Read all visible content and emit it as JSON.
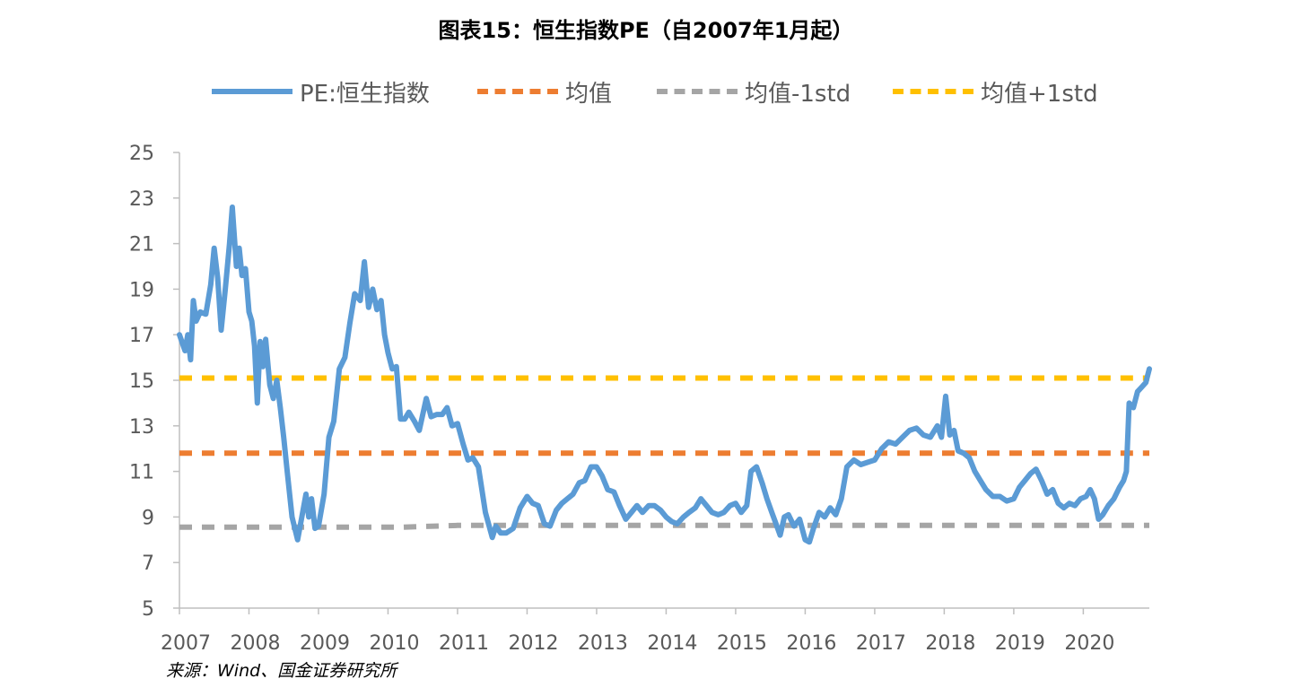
{
  "title": "图表15：恒生指数PE（自2007年1月起）",
  "source": "来源：Wind、国金证券研究所",
  "colors": {
    "pe": "#5B9BD5",
    "mean": "#ED7D31",
    "minus_std": "#A5A5A5",
    "plus_std": "#FFC000",
    "axis": "#BFBFBF",
    "tick_text": "#595959"
  },
  "chart_data": {
    "type": "line",
    "title": "图表15：恒生指数PE（自2007年1月起）",
    "xlabel": "",
    "ylabel": "",
    "ylim": [
      5,
      25
    ],
    "xlim": [
      2007.0,
      2020.95
    ],
    "y_ticks": [
      5,
      7,
      9,
      11,
      13,
      15,
      17,
      19,
      21,
      23,
      25
    ],
    "x_ticks": [
      "2007",
      "2008",
      "2009",
      "2010",
      "2011",
      "2012",
      "2013",
      "2014",
      "2015",
      "2016",
      "2017",
      "2018",
      "2019",
      "2020"
    ],
    "grid": false,
    "legend_position": "top",
    "series": [
      {
        "name": "PE:恒生指数",
        "style": "solid",
        "color": "#5B9BD5",
        "x": [
          2007.0,
          2007.08,
          2007.12,
          2007.16,
          2007.2,
          2007.24,
          2007.3,
          2007.38,
          2007.45,
          2007.5,
          2007.55,
          2007.6,
          2007.66,
          2007.72,
          2007.76,
          2007.82,
          2007.86,
          2007.9,
          2007.95,
          2008.0,
          2008.04,
          2008.08,
          2008.12,
          2008.16,
          2008.2,
          2008.24,
          2008.3,
          2008.35,
          2008.4,
          2008.45,
          2008.5,
          2008.55,
          2008.62,
          2008.7,
          2008.76,
          2008.82,
          2008.86,
          2008.9,
          2008.95,
          2009.0,
          2009.08,
          2009.15,
          2009.22,
          2009.3,
          2009.38,
          2009.45,
          2009.52,
          2009.6,
          2009.66,
          2009.72,
          2009.78,
          2009.84,
          2009.9,
          2009.95,
          2010.0,
          2010.06,
          2010.12,
          2010.18,
          2010.24,
          2010.3,
          2010.38,
          2010.45,
          2010.55,
          2010.62,
          2010.7,
          2010.78,
          2010.85,
          2010.92,
          2011.0,
          2011.08,
          2011.15,
          2011.22,
          2011.3,
          2011.4,
          2011.5,
          2011.55,
          2011.62,
          2011.7,
          2011.8,
          2011.9,
          2012.0,
          2012.08,
          2012.16,
          2012.25,
          2012.33,
          2012.42,
          2012.5,
          2012.58,
          2012.66,
          2012.75,
          2012.83,
          2012.92,
          2013.0,
          2013.08,
          2013.16,
          2013.25,
          2013.33,
          2013.42,
          2013.5,
          2013.58,
          2013.66,
          2013.75,
          2013.83,
          2013.92,
          2014.0,
          2014.08,
          2014.16,
          2014.25,
          2014.33,
          2014.42,
          2014.5,
          2014.58,
          2014.66,
          2014.75,
          2014.83,
          2014.92,
          2015.0,
          2015.08,
          2015.16,
          2015.22,
          2015.3,
          2015.38,
          2015.45,
          2015.52,
          2015.58,
          2015.64,
          2015.7,
          2015.76,
          2015.84,
          2015.92,
          2016.0,
          2016.06,
          2016.12,
          2016.2,
          2016.28,
          2016.36,
          2016.44,
          2016.52,
          2016.6,
          2016.7,
          2016.8,
          2016.9,
          2017.0,
          2017.1,
          2017.2,
          2017.3,
          2017.4,
          2017.5,
          2017.6,
          2017.7,
          2017.8,
          2017.9,
          2017.96,
          2018.02,
          2018.08,
          2018.14,
          2018.2,
          2018.28,
          2018.36,
          2018.44,
          2018.52,
          2018.6,
          2018.7,
          2018.8,
          2018.9,
          2019.0,
          2019.08,
          2019.16,
          2019.24,
          2019.32,
          2019.4,
          2019.48,
          2019.56,
          2019.64,
          2019.72,
          2019.8,
          2019.88,
          2019.96,
          2020.04,
          2020.1,
          2020.16,
          2020.22,
          2020.28,
          2020.36,
          2020.44,
          2020.52,
          2020.58,
          2020.62,
          2020.66,
          2020.72,
          2020.78,
          2020.84,
          2020.9,
          2020.95
        ],
        "values": [
          17.0,
          16.3,
          17.0,
          15.9,
          18.5,
          17.6,
          18.0,
          17.9,
          19.2,
          20.8,
          19.5,
          17.2,
          19.0,
          21.0,
          22.6,
          20.0,
          20.8,
          19.6,
          19.9,
          18.0,
          17.6,
          16.5,
          14.0,
          16.7,
          15.6,
          16.8,
          14.8,
          14.2,
          15.0,
          13.8,
          12.5,
          11.0,
          9.0,
          8.0,
          9.0,
          10.0,
          9.0,
          9.8,
          8.5,
          8.6,
          10.0,
          12.5,
          13.2,
          15.5,
          16.0,
          17.5,
          18.8,
          18.5,
          20.2,
          18.2,
          19.0,
          18.1,
          18.5,
          17.0,
          16.2,
          15.5,
          15.6,
          13.3,
          13.3,
          13.6,
          13.2,
          12.8,
          14.2,
          13.4,
          13.5,
          13.5,
          13.8,
          13.0,
          13.1,
          12.2,
          11.5,
          11.6,
          11.2,
          9.2,
          8.1,
          8.6,
          8.3,
          8.3,
          8.5,
          9.4,
          9.9,
          9.6,
          9.5,
          8.7,
          8.6,
          9.3,
          9.6,
          9.8,
          10.0,
          10.5,
          10.6,
          11.2,
          11.2,
          10.8,
          10.2,
          10.1,
          9.5,
          8.9,
          9.2,
          9.5,
          9.2,
          9.5,
          9.5,
          9.3,
          9.0,
          8.8,
          8.7,
          9.0,
          9.2,
          9.4,
          9.8,
          9.5,
          9.2,
          9.1,
          9.2,
          9.5,
          9.6,
          9.2,
          9.5,
          11.0,
          11.2,
          10.5,
          9.8,
          9.2,
          8.7,
          8.2,
          9.0,
          9.1,
          8.6,
          8.9,
          8.0,
          7.9,
          8.5,
          9.2,
          9.0,
          9.4,
          9.1,
          9.8,
          11.2,
          11.5,
          11.3,
          11.4,
          11.5,
          12.0,
          12.3,
          12.2,
          12.5,
          12.8,
          12.9,
          12.6,
          12.5,
          13.0,
          12.5,
          14.3,
          12.6,
          12.8,
          11.9,
          11.8,
          11.6,
          11.0,
          10.6,
          10.2,
          9.9,
          9.9,
          9.7,
          9.8,
          10.3,
          10.6,
          10.9,
          11.1,
          10.6,
          10.0,
          10.2,
          9.6,
          9.4,
          9.6,
          9.5,
          9.8,
          9.9,
          10.2,
          9.8,
          8.9,
          9.1,
          9.5,
          9.8,
          10.3,
          10.6,
          11.0,
          14.0,
          13.8,
          14.5,
          14.7,
          14.9,
          15.5
        ]
      },
      {
        "name": "均值",
        "style": "dashed",
        "color": "#ED7D31",
        "x": [
          2007.0,
          2020.1,
          2020.14,
          2020.18,
          2020.95
        ],
        "values": [
          11.8,
          11.8,
          11.72,
          11.8,
          11.8
        ]
      },
      {
        "name": "均值-1std",
        "style": "dashed",
        "color": "#A5A5A5",
        "x": [
          2007.0,
          2010.2,
          2011.0,
          2020.95
        ],
        "values": [
          8.55,
          8.55,
          8.63,
          8.63
        ]
      },
      {
        "name": "均值+1std",
        "style": "dashed",
        "color": "#FFC000",
        "x": [
          2007.0,
          2020.1,
          2020.14,
          2020.18,
          2020.95
        ],
        "values": [
          15.1,
          15.1,
          15.02,
          15.1,
          15.1
        ]
      }
    ]
  }
}
